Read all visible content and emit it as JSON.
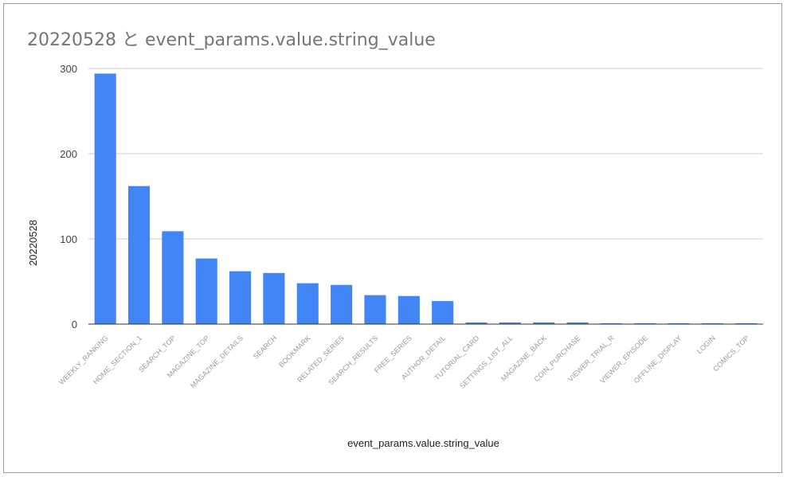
{
  "chart_data": {
    "type": "bar",
    "title": "20220528 と event_params.value.string_value",
    "xlabel": "event_params.value.string_value",
    "ylabel": "20220528",
    "ylim": [
      0,
      300
    ],
    "yticks": [
      "0",
      "100",
      "200",
      "300"
    ],
    "grid": true,
    "legend": "none",
    "bar_color": "#4285f4",
    "categories": [
      "WEEKLY_RANKING",
      "HOME_SECTION_1",
      "SEARCH_TOP",
      "MAGAZINE_TOP",
      "MAGAZINE_DETAILS",
      "SEARCH",
      "BOOKMARK",
      "RELATED_SERIES",
      "SEARCH_RESULTS",
      "FREE_SERIES",
      "AUTHOR_DETAIL",
      "TUTORIAL_CARD",
      "SETTINGS_LIST_ALL",
      "MAGAZINE_BACK",
      "COIN_PURCHASE",
      "VIEWER_TRIAL_R",
      "VIEWER_EPISODE",
      "OFFLINE_DISPLAY",
      "LOGIN",
      "COMICS_TOP"
    ],
    "values": [
      294,
      162,
      109,
      77,
      62,
      60,
      48,
      46,
      34,
      33,
      27,
      2,
      2,
      2,
      2,
      1,
      1,
      1,
      1,
      1
    ]
  }
}
